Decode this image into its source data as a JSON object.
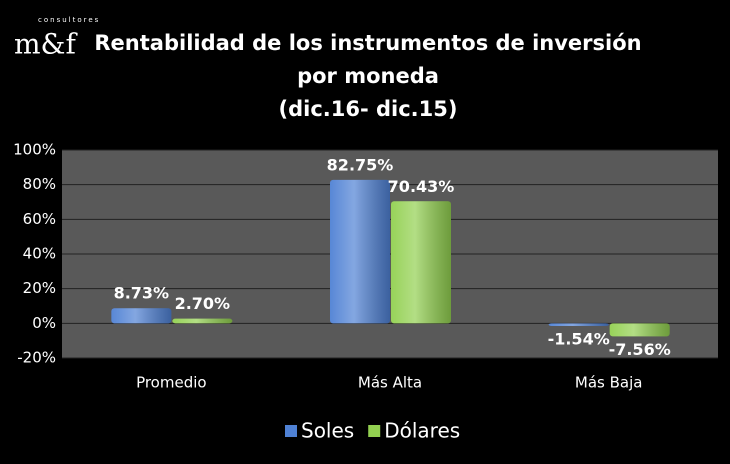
{
  "logo": {
    "tagline": "consultores",
    "mark": "m&f"
  },
  "chart_data": {
    "type": "bar",
    "title": [
      "Rentabilidad de los instrumentos de inversión",
      "por moneda",
      "(dic.16- dic.15)"
    ],
    "categories": [
      "Promedio",
      "Más Alta",
      "Más Baja"
    ],
    "series": [
      {
        "name": "Soles",
        "color": "#4f81d4",
        "values": [
          8.73,
          82.75,
          -1.54
        ],
        "value_labels": [
          "8.73%",
          "82.75%",
          "-1.54%"
        ]
      },
      {
        "name": "Dólares",
        "color": "#92d050",
        "values": [
          2.7,
          70.43,
          -7.56
        ],
        "value_labels": [
          "2.70%",
          "70.43%",
          "-7.56%"
        ]
      }
    ],
    "ylim": [
      -20,
      100
    ],
    "yticks": [
      {
        "value": -20,
        "label": "-20%"
      },
      {
        "value": 0,
        "label": "0%"
      },
      {
        "value": 20,
        "label": "20%"
      },
      {
        "value": 40,
        "label": "40%"
      },
      {
        "value": 60,
        "label": "60%"
      },
      {
        "value": 80,
        "label": "80%"
      },
      {
        "value": 100,
        "label": "100%"
      }
    ],
    "grid": true,
    "legend": "bottom"
  }
}
